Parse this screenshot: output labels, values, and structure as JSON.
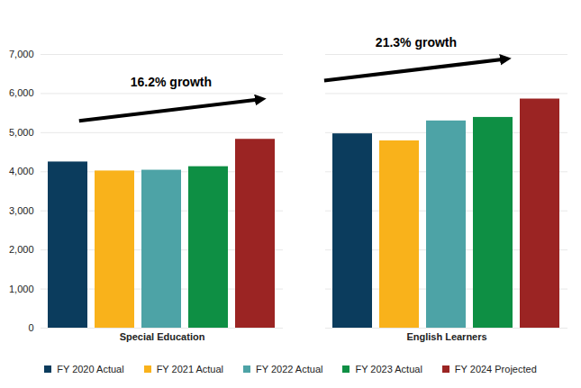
{
  "chart_data": {
    "type": "bar",
    "categories": [
      "Special Education",
      "English Learners"
    ],
    "series": [
      {
        "name": "FY 2020 Actual",
        "color": "#0b3c5d",
        "values": [
          4250,
          4970
        ]
      },
      {
        "name": "FY 2021 Actual",
        "color": "#f9b21b",
        "values": [
          4020,
          4790
        ]
      },
      {
        "name": "FY 2022 Actual",
        "color": "#4da3a6",
        "values": [
          4040,
          5300
        ]
      },
      {
        "name": "FY 2023 Actual",
        "color": "#0e8f44",
        "values": [
          4130,
          5390
        ]
      },
      {
        "name": "FY 2024 Projected",
        "color": "#9b2423",
        "values": [
          4830,
          5860
        ]
      }
    ],
    "ylim": [
      0,
      7000
    ],
    "yticks": [
      0,
      {
        "value": 1000,
        "label": "1,000"
      },
      {
        "value": 2000,
        "label": "2,000"
      },
      {
        "value": 3000,
        "label": "3,000"
      },
      {
        "value": 4000,
        "label": "4,000"
      },
      {
        "value": 5000,
        "label": "5,000"
      },
      {
        "value": 6000,
        "label": "6,000"
      },
      {
        "value": 7000,
        "label": "7,000"
      }
    ],
    "grid": true,
    "legend": "bottom",
    "annotations": [
      {
        "text": "16.2% growth",
        "category": "Special Education"
      },
      {
        "text": "21.3% growth",
        "category": "English Learners"
      }
    ]
  }
}
